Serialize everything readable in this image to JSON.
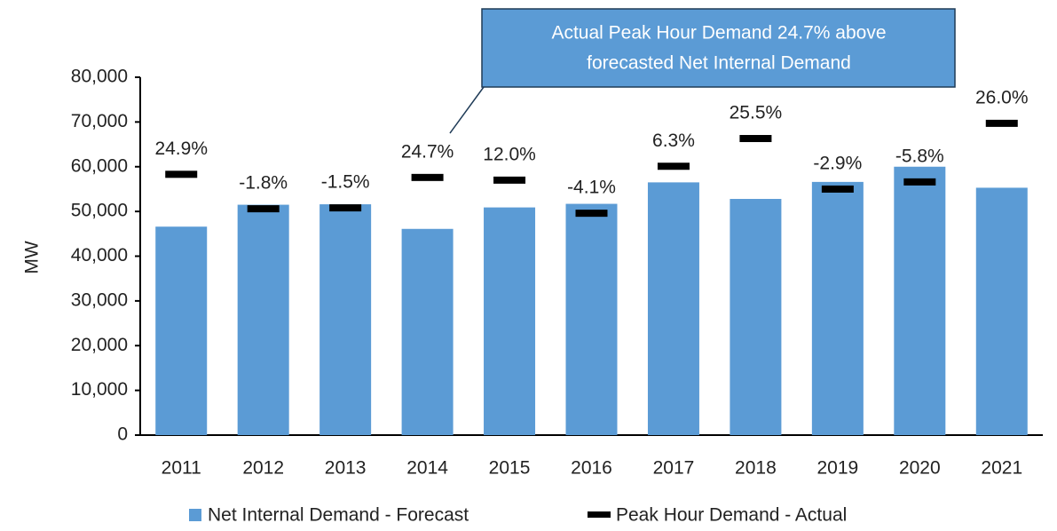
{
  "chart_data": {
    "type": "bar",
    "y_label": "MW",
    "categories": [
      "2011",
      "2012",
      "2013",
      "2014",
      "2015",
      "2016",
      "2017",
      "2018",
      "2019",
      "2020",
      "2021"
    ],
    "series": [
      {
        "name": "Net Internal Demand - Forecast",
        "color": "#5b9bd5",
        "mark": "bar",
        "values": [
          46600,
          51500,
          51600,
          46100,
          50900,
          51700,
          56500,
          52800,
          56600,
          60000,
          55300
        ]
      },
      {
        "name": "Peak Hour Demand - Actual",
        "color": "#000000",
        "mark": "dash",
        "values": [
          58300,
          50600,
          50800,
          57600,
          57000,
          49600,
          60100,
          66300,
          55000,
          56600,
          69700
        ]
      }
    ],
    "percent_labels": [
      "24.9%",
      "-1.8%",
      "-1.5%",
      "24.7%",
      "12.0%",
      "-4.1%",
      "6.3%",
      "25.5%",
      "-2.9%",
      "-5.8%",
      "26.0%"
    ],
    "annotation": [
      "Actual Peak Hour Demand 24.7% above",
      "forecasted Net Internal Demand"
    ],
    "ylim": [
      0,
      80000
    ],
    "yticks": [
      {
        "value": 0,
        "label": "0"
      },
      {
        "value": 10000,
        "label": "10,000"
      },
      {
        "value": 20000,
        "label": "20,000"
      },
      {
        "value": 30000,
        "label": "30,000"
      },
      {
        "value": 40000,
        "label": "40,000"
      },
      {
        "value": 50000,
        "label": "50,000"
      },
      {
        "value": 60000,
        "label": "60,000"
      },
      {
        "value": 70000,
        "label": "70,000"
      },
      {
        "value": 80000,
        "label": "80,000"
      }
    ],
    "grid": false,
    "legend": "bottom"
  }
}
